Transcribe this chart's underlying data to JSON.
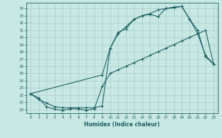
{
  "background_color": "#c8e8e4",
  "grid_color": "#a8ccc8",
  "line_color": "#1a6060",
  "xlabel": "Humidex (Indice chaleur)",
  "x_ticks": [
    0,
    1,
    2,
    3,
    4,
    5,
    6,
    7,
    8,
    9,
    10,
    11,
    12,
    13,
    14,
    15,
    16,
    17,
    18,
    19,
    20,
    21,
    22,
    23
  ],
  "y_ticks": [
    20,
    21,
    22,
    23,
    24,
    25,
    26,
    27,
    28,
    29,
    30,
    31,
    32,
    33,
    34
  ],
  "ylim": [
    19.5,
    34.8
  ],
  "xlim": [
    -0.5,
    23.5
  ],
  "line1_x": [
    0,
    1,
    2,
    3,
    4,
    5,
    6,
    7,
    8,
    9,
    10,
    11,
    12,
    13,
    14,
    15,
    16,
    17,
    18,
    19,
    20,
    21,
    22,
    23
  ],
  "line1_y": [
    22.2,
    21.6,
    20.4,
    20.05,
    19.9,
    20.1,
    20.1,
    19.9,
    20.1,
    23.2,
    25.0,
    25.5,
    26.0,
    26.5,
    27.0,
    27.5,
    28.0,
    28.5,
    29.0,
    29.5,
    30.0,
    30.5,
    31.0,
    26.3
  ],
  "line2_x": [
    0,
    1,
    2,
    3,
    4,
    5,
    6,
    7,
    8,
    9,
    10,
    11,
    12,
    13,
    14,
    15,
    16,
    17,
    18,
    19,
    20,
    21,
    22,
    23
  ],
  "line2_y": [
    22.2,
    21.4,
    20.9,
    20.4,
    20.25,
    20.25,
    20.25,
    20.25,
    20.25,
    20.5,
    28.5,
    30.5,
    31.5,
    32.5,
    33.0,
    33.3,
    33.8,
    34.0,
    34.2,
    34.3,
    32.5,
    31.0,
    27.3,
    26.3
  ],
  "line3_x": [
    0,
    9,
    10,
    11,
    12,
    13,
    14,
    15,
    16,
    17,
    18,
    19,
    20,
    21,
    22,
    23
  ],
  "line3_y": [
    22.2,
    24.8,
    28.5,
    30.7,
    31.2,
    32.5,
    33.0,
    33.2,
    32.9,
    34.0,
    34.1,
    34.3,
    32.5,
    30.5,
    27.5,
    26.3
  ]
}
